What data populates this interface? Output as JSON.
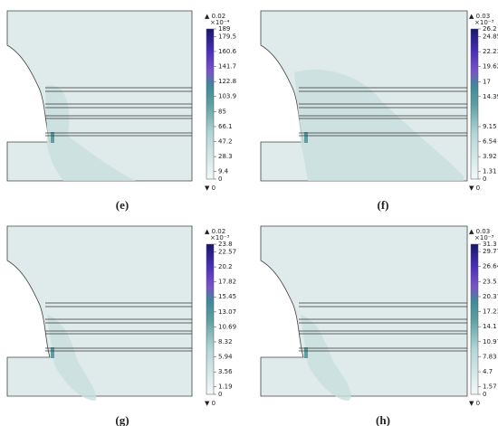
{
  "panels": [
    {
      "caption": "(e)",
      "max_label": "▲ 0.02",
      "exponent": "×10⁻⁴",
      "ticks": [
        189,
        179.5,
        160.6,
        141.7,
        122.8,
        103.9,
        85,
        66.1,
        47.2,
        28.3,
        9.4,
        0
      ],
      "min_label": "▼ 0"
    },
    {
      "caption": "(f)",
      "max_label": "▲ 0.03",
      "exponent": "×10⁻³",
      "ticks": [
        26.2,
        24.85,
        22.23,
        19.62,
        17,
        14.39,
        9.15,
        6.54,
        3.92,
        1.31,
        0
      ],
      "min_label": "▼ 0"
    },
    {
      "caption": "(g)",
      "max_label": "▲ 0.02",
      "exponent": "×10⁻³",
      "ticks": [
        23.8,
        22.57,
        20.2,
        17.82,
        15.45,
        13.07,
        10.69,
        8.32,
        5.94,
        3.56,
        1.19,
        0
      ],
      "min_label": "▼ 0"
    },
    {
      "caption": "(h)",
      "max_label": "▲ 0.03",
      "exponent": "×10⁻³",
      "ticks": [
        31.3,
        29.77,
        26.64,
        23.5,
        20.37,
        17.23,
        14.1,
        10.97,
        7.83,
        4.7,
        1.57,
        0
      ],
      "min_label": "▼ 0"
    }
  ]
}
